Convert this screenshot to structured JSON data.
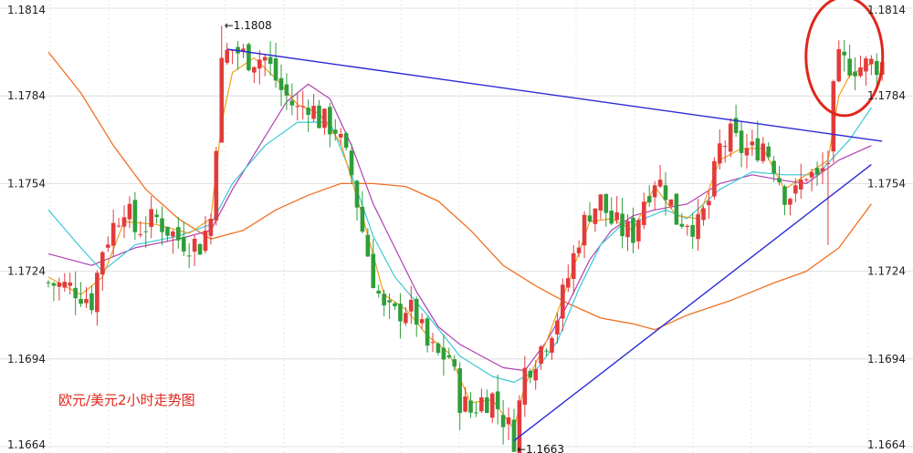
{
  "chart_data": {
    "type": "candlestick",
    "caption": "欧元/美元2小时走势图",
    "y_ticks": [
      "1.1814",
      "1.1784",
      "1.1754",
      "1.1724",
      "1.1694",
      "1.1664"
    ],
    "ylim": [
      1.1664,
      1.1814
    ],
    "n_bars": 155,
    "annotations": [
      {
        "text": "1.1808",
        "bar": 32,
        "price": 1.1808
      },
      {
        "text": "1.1663",
        "bar": 86,
        "price": 1.1663
      }
    ],
    "trendlines": [
      {
        "color": "#2a2ad6",
        "from": {
          "bar": 33,
          "price": 1.18
        },
        "to": {
          "bar": 154,
          "price": 1.17685
        }
      },
      {
        "color": "#2a2ad6",
        "from": {
          "bar": 86,
          "price": 1.1666
        },
        "to": {
          "bar": 152,
          "price": 1.17605
        }
      }
    ],
    "highlight": {
      "bar": 146,
      "price": 1.1795,
      "color": "#e0261b"
    },
    "grid": true,
    "colors": {
      "up": "#e23b3b",
      "down": "#2f9e3a",
      "ma_fast": "#f0a020",
      "ma_cyan": "#3cc8d8",
      "ma_purple": "#b040b0",
      "ma_slow": "#f07020",
      "caption": "#e0261b",
      "trendline": "#2a2ad6",
      "highlight": "#e0261b",
      "grid": "#d8d8d8"
    },
    "anchors": [
      [
        0,
        1.172
      ],
      [
        5,
        1.1718
      ],
      [
        8,
        1.1714
      ],
      [
        10,
        1.1732
      ],
      [
        14,
        1.1747
      ],
      [
        16,
        1.1738
      ],
      [
        20,
        1.1742
      ],
      [
        24,
        1.1735
      ],
      [
        28,
        1.1733
      ],
      [
        30,
        1.1742
      ],
      [
        32,
        1.1797
      ],
      [
        34,
        1.18
      ],
      [
        37,
        1.1797
      ],
      [
        40,
        1.1797
      ],
      [
        43,
        1.1786
      ],
      [
        46,
        1.1779
      ],
      [
        48,
        1.1782
      ],
      [
        50,
        1.1776
      ],
      [
        53,
        1.1773
      ],
      [
        56,
        1.1757
      ],
      [
        58,
        1.1738
      ],
      [
        60,
        1.1722
      ],
      [
        62,
        1.171
      ],
      [
        64,
        1.1709
      ],
      [
        66,
        1.1712
      ],
      [
        68,
        1.1708
      ],
      [
        70,
        1.1698
      ],
      [
        72,
        1.1695
      ],
      [
        74,
        1.1695
      ],
      [
        76,
        1.168
      ],
      [
        78,
        1.1676
      ],
      [
        80,
        1.168
      ],
      [
        82,
        1.1681
      ],
      [
        84,
        1.1674
      ],
      [
        86,
        1.1667
      ],
      [
        88,
        1.169
      ],
      [
        90,
        1.1695
      ],
      [
        92,
        1.1701
      ],
      [
        94,
        1.1709
      ],
      [
        96,
        1.1722
      ],
      [
        98,
        1.1736
      ],
      [
        100,
        1.1745
      ],
      [
        102,
        1.1748
      ],
      [
        104,
        1.1741
      ],
      [
        106,
        1.1738
      ],
      [
        108,
        1.1737
      ],
      [
        110,
        1.1749
      ],
      [
        112,
        1.1756
      ],
      [
        114,
        1.1752
      ],
      [
        116,
        1.1742
      ],
      [
        118,
        1.1742
      ],
      [
        120,
        1.1739
      ],
      [
        122,
        1.1748
      ],
      [
        124,
        1.1766
      ],
      [
        126,
        1.177
      ],
      [
        128,
        1.1766
      ],
      [
        130,
        1.1765
      ],
      [
        132,
        1.1768
      ],
      [
        134,
        1.1761
      ],
      [
        136,
        1.1751
      ],
      [
        138,
        1.175
      ],
      [
        140,
        1.1758
      ],
      [
        142,
        1.1755
      ],
      [
        144,
        1.1762
      ],
      [
        146,
        1.1795
      ],
      [
        148,
        1.1795
      ],
      [
        150,
        1.1794
      ],
      [
        152,
        1.1795
      ],
      [
        154,
        1.1795
      ]
    ],
    "moving_averages": [
      {
        "color": "#f07020",
        "width": 1.3,
        "points": [
          [
            0,
            1.1799
          ],
          [
            6,
            1.1785
          ],
          [
            12,
            1.1767
          ],
          [
            18,
            1.1752
          ],
          [
            24,
            1.1742
          ],
          [
            30,
            1.1735
          ],
          [
            36,
            1.1738
          ],
          [
            42,
            1.1745
          ],
          [
            48,
            1.175
          ],
          [
            54,
            1.1754
          ],
          [
            60,
            1.1754
          ],
          [
            66,
            1.1753
          ],
          [
            72,
            1.1748
          ],
          [
            78,
            1.1738
          ],
          [
            84,
            1.1726
          ],
          [
            90,
            1.1719
          ],
          [
            96,
            1.1713
          ],
          [
            102,
            1.1708
          ],
          [
            108,
            1.1706
          ],
          [
            112,
            1.1704
          ],
          [
            118,
            1.1709
          ],
          [
            126,
            1.1714
          ],
          [
            134,
            1.172
          ],
          [
            140,
            1.1724
          ],
          [
            146,
            1.1732
          ],
          [
            152,
            1.1747
          ]
        ]
      },
      {
        "color": "#b040b0",
        "width": 1.2,
        "points": [
          [
            0,
            1.173
          ],
          [
            8,
            1.1726
          ],
          [
            16,
            1.1732
          ],
          [
            24,
            1.1735
          ],
          [
            30,
            1.1738
          ],
          [
            34,
            1.1752
          ],
          [
            40,
            1.177
          ],
          [
            44,
            1.1782
          ],
          [
            48,
            1.1788
          ],
          [
            52,
            1.1783
          ],
          [
            56,
            1.1767
          ],
          [
            60,
            1.1747
          ],
          [
            64,
            1.1732
          ],
          [
            68,
            1.1717
          ],
          [
            72,
            1.1705
          ],
          [
            76,
            1.1699
          ],
          [
            80,
            1.1695
          ],
          [
            84,
            1.1691
          ],
          [
            88,
            1.169
          ],
          [
            92,
            1.17
          ],
          [
            96,
            1.1713
          ],
          [
            100,
            1.1728
          ],
          [
            104,
            1.1738
          ],
          [
            108,
            1.1743
          ],
          [
            112,
            1.1745
          ],
          [
            118,
            1.1747
          ],
          [
            124,
            1.1754
          ],
          [
            130,
            1.1757
          ],
          [
            136,
            1.1755
          ],
          [
            140,
            1.1754
          ],
          [
            146,
            1.1762
          ],
          [
            152,
            1.1767
          ]
        ]
      },
      {
        "color": "#3cc8d8",
        "width": 1.2,
        "points": [
          [
            0,
            1.1745
          ],
          [
            6,
            1.1732
          ],
          [
            10,
            1.1724
          ],
          [
            16,
            1.1733
          ],
          [
            24,
            1.1736
          ],
          [
            30,
            1.174
          ],
          [
            34,
            1.1754
          ],
          [
            40,
            1.1767
          ],
          [
            46,
            1.1775
          ],
          [
            52,
            1.1775
          ],
          [
            56,
            1.1757
          ],
          [
            60,
            1.1736
          ],
          [
            64,
            1.1722
          ],
          [
            70,
            1.1709
          ],
          [
            76,
            1.1695
          ],
          [
            82,
            1.1688
          ],
          [
            86,
            1.1686
          ],
          [
            90,
            1.169
          ],
          [
            94,
            1.17
          ],
          [
            98,
            1.1718
          ],
          [
            102,
            1.1733
          ],
          [
            106,
            1.174
          ],
          [
            110,
            1.1742
          ],
          [
            114,
            1.1745
          ],
          [
            118,
            1.1742
          ],
          [
            124,
            1.1752
          ],
          [
            130,
            1.1758
          ],
          [
            136,
            1.1757
          ],
          [
            142,
            1.1757
          ],
          [
            148,
            1.1769
          ],
          [
            152,
            1.178
          ]
        ]
      },
      {
        "color": "#f0a020",
        "width": 1.2,
        "points": [
          [
            0,
            1.1722
          ],
          [
            6,
            1.1716
          ],
          [
            10,
            1.1722
          ],
          [
            14,
            1.1741
          ],
          [
            20,
            1.174
          ],
          [
            26,
            1.1737
          ],
          [
            30,
            1.1742
          ],
          [
            32,
            1.1775
          ],
          [
            34,
            1.1792
          ],
          [
            38,
            1.1797
          ],
          [
            42,
            1.179
          ],
          [
            46,
            1.1781
          ],
          [
            50,
            1.1778
          ],
          [
            54,
            1.1768
          ],
          [
            58,
            1.1743
          ],
          [
            62,
            1.1716
          ],
          [
            66,
            1.1711
          ],
          [
            70,
            1.1702
          ],
          [
            74,
            1.1696
          ],
          [
            78,
            1.1679
          ],
          [
            82,
            1.168
          ],
          [
            86,
            1.167
          ],
          [
            88,
            1.1685
          ],
          [
            92,
            1.17
          ],
          [
            96,
            1.172
          ],
          [
            100,
            1.1741
          ],
          [
            104,
            1.1742
          ],
          [
            108,
            1.1738
          ],
          [
            112,
            1.1753
          ],
          [
            116,
            1.1743
          ],
          [
            120,
            1.1742
          ],
          [
            124,
            1.1762
          ],
          [
            128,
            1.1766
          ],
          [
            132,
            1.1766
          ],
          [
            136,
            1.1752
          ],
          [
            140,
            1.1757
          ],
          [
            144,
            1.1762
          ],
          [
            146,
            1.1784
          ],
          [
            148,
            1.1791
          ],
          [
            152,
            1.1795
          ]
        ]
      }
    ]
  }
}
